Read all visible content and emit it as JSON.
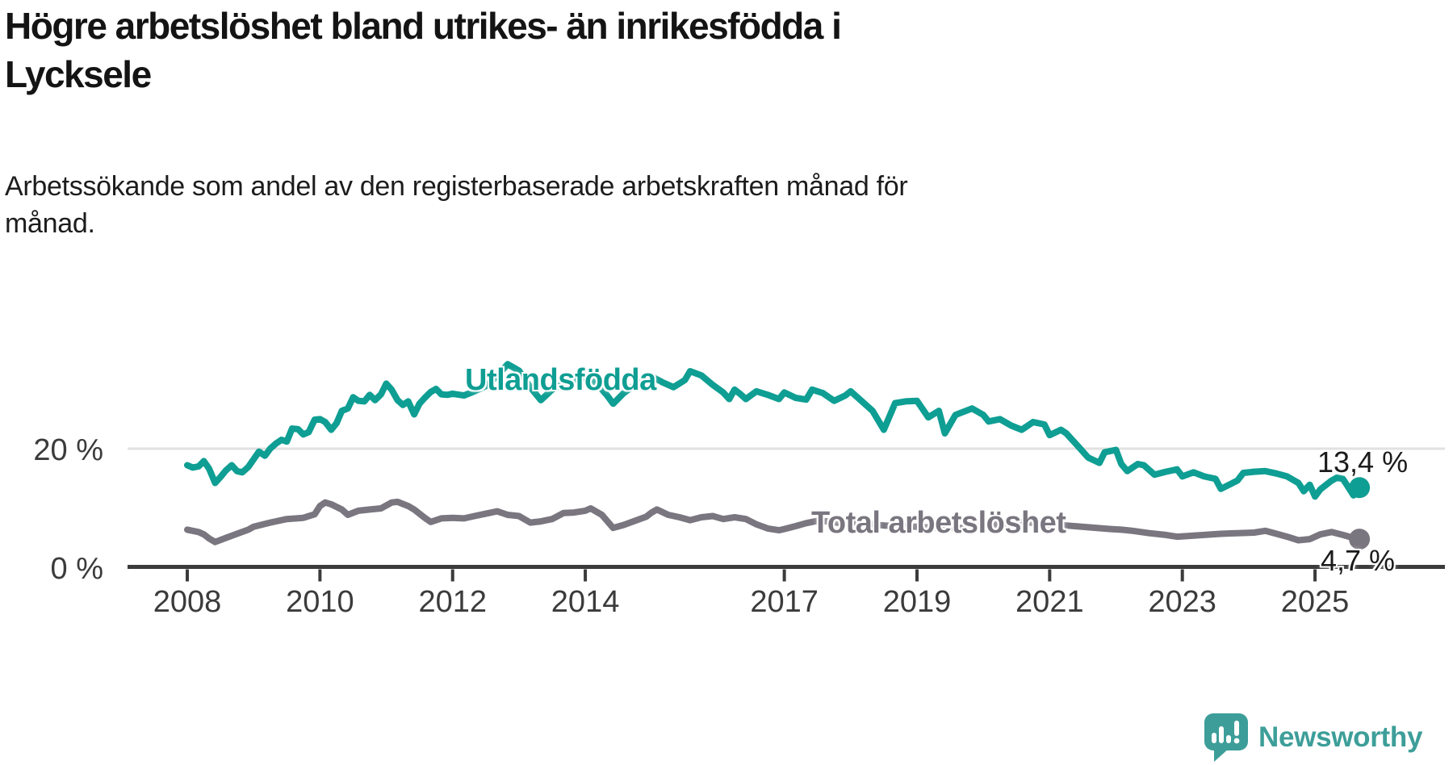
{
  "header": {
    "title_lines": [
      "Högre arbetslöshet bland utrikes- än inrikesfödda i",
      "Lycksele"
    ],
    "subtitle_lines": [
      "Arbetssökande som andel av den registerbaserade arbetskraften månad för",
      "månad."
    ]
  },
  "footer": {
    "brand": "Newsworthy"
  },
  "colors": {
    "foreign_born_line": "#0f9e93",
    "total_line": "#7a7680",
    "axis": "#3b3b3b",
    "gridline": "#e1e1e1",
    "text": "#141414",
    "brand_teal": "#3d9e99"
  },
  "chart_data": {
    "type": "line",
    "title": "Högre arbetslöshet bland utrikes- än inrikesfödda i Lycksele",
    "subtitle": "Arbetssökande som andel av den registerbaserade arbetskraften månad för månad.",
    "unit": "%",
    "x_axis": {
      "ticks": [
        2008,
        2010,
        2012,
        2014,
        2017,
        2019,
        2021,
        2023,
        2025
      ],
      "range": [
        2007.1,
        2026.9
      ]
    },
    "y_axis": {
      "ticks": [
        {
          "value": 0,
          "label": "0 %"
        },
        {
          "value": 20,
          "label": "20 %"
        }
      ],
      "range": [
        0,
        40
      ]
    },
    "grid": "horizontal-only",
    "legend_position": "inline-labels",
    "series": [
      {
        "name": "Utlandsfödda",
        "color": "#0f9e93",
        "end_label": "13,4 %",
        "end_value": 13.4,
        "points": [
          [
            2008.0,
            17.2
          ],
          [
            2008.08,
            16.8
          ],
          [
            2008.17,
            17.0
          ],
          [
            2008.25,
            17.9
          ],
          [
            2008.33,
            16.6
          ],
          [
            2008.42,
            14.2
          ],
          [
            2008.5,
            15.2
          ],
          [
            2008.58,
            16.3
          ],
          [
            2008.67,
            17.2
          ],
          [
            2008.75,
            16.2
          ],
          [
            2008.83,
            16.0
          ],
          [
            2008.92,
            16.9
          ],
          [
            2009.0,
            18.2
          ],
          [
            2009.08,
            19.5
          ],
          [
            2009.17,
            18.8
          ],
          [
            2009.25,
            20.0
          ],
          [
            2009.33,
            20.8
          ],
          [
            2009.42,
            21.5
          ],
          [
            2009.5,
            21.2
          ],
          [
            2009.58,
            23.4
          ],
          [
            2009.67,
            23.3
          ],
          [
            2009.75,
            22.4
          ],
          [
            2009.83,
            22.8
          ],
          [
            2009.92,
            24.9
          ],
          [
            2010.0,
            25.0
          ],
          [
            2010.08,
            24.5
          ],
          [
            2010.17,
            23.2
          ],
          [
            2010.25,
            24.3
          ],
          [
            2010.33,
            26.4
          ],
          [
            2010.42,
            26.8
          ],
          [
            2010.5,
            28.7
          ],
          [
            2010.58,
            28.1
          ],
          [
            2010.67,
            28.0
          ],
          [
            2010.75,
            29.1
          ],
          [
            2010.83,
            28.2
          ],
          [
            2010.92,
            29.2
          ],
          [
            2011.0,
            31.0
          ],
          [
            2011.08,
            30.0
          ],
          [
            2011.17,
            28.2
          ],
          [
            2011.25,
            27.4
          ],
          [
            2011.33,
            28.0
          ],
          [
            2011.42,
            25.8
          ],
          [
            2011.5,
            27.6
          ],
          [
            2011.58,
            28.6
          ],
          [
            2011.67,
            29.6
          ],
          [
            2011.75,
            30.1
          ],
          [
            2011.83,
            29.2
          ],
          [
            2011.92,
            29.1
          ],
          [
            2012.0,
            29.3
          ],
          [
            2012.17,
            29.0
          ],
          [
            2012.33,
            29.7
          ],
          [
            2012.5,
            30.6
          ],
          [
            2012.67,
            32.3
          ],
          [
            2012.83,
            34.3
          ],
          [
            2013.0,
            33.2
          ],
          [
            2013.17,
            30.4
          ],
          [
            2013.33,
            28.2
          ],
          [
            2013.5,
            30.0
          ],
          [
            2013.67,
            31.0
          ],
          [
            2013.83,
            31.6
          ],
          [
            2014.0,
            32.1
          ],
          [
            2014.17,
            31.0
          ],
          [
            2014.33,
            29.0
          ],
          [
            2014.42,
            27.6
          ],
          [
            2014.58,
            29.4
          ],
          [
            2014.75,
            30.8
          ],
          [
            2014.92,
            31.6
          ],
          [
            2015.0,
            32.2
          ],
          [
            2015.17,
            31.2
          ],
          [
            2015.33,
            30.4
          ],
          [
            2015.5,
            31.6
          ],
          [
            2015.58,
            33.1
          ],
          [
            2015.75,
            32.4
          ],
          [
            2015.92,
            30.8
          ],
          [
            2016.08,
            29.5
          ],
          [
            2016.17,
            28.4
          ],
          [
            2016.25,
            30.0
          ],
          [
            2016.33,
            29.3
          ],
          [
            2016.42,
            28.4
          ],
          [
            2016.58,
            29.7
          ],
          [
            2016.75,
            29.1
          ],
          [
            2016.92,
            28.4
          ],
          [
            2017.0,
            29.5
          ],
          [
            2017.17,
            28.6
          ],
          [
            2017.33,
            28.3
          ],
          [
            2017.42,
            30.0
          ],
          [
            2017.58,
            29.4
          ],
          [
            2017.75,
            28.1
          ],
          [
            2017.92,
            29.0
          ],
          [
            2018.0,
            29.7
          ],
          [
            2018.17,
            28.0
          ],
          [
            2018.33,
            26.4
          ],
          [
            2018.5,
            23.2
          ],
          [
            2018.67,
            27.7
          ],
          [
            2018.83,
            28.0
          ],
          [
            2019.0,
            28.1
          ],
          [
            2019.17,
            25.3
          ],
          [
            2019.33,
            26.4
          ],
          [
            2019.42,
            22.6
          ],
          [
            2019.58,
            25.7
          ],
          [
            2019.83,
            26.8
          ],
          [
            2020.0,
            25.7
          ],
          [
            2020.08,
            24.6
          ],
          [
            2020.25,
            25.0
          ],
          [
            2020.42,
            23.9
          ],
          [
            2020.58,
            23.2
          ],
          [
            2020.75,
            24.5
          ],
          [
            2020.92,
            24.1
          ],
          [
            2021.0,
            22.3
          ],
          [
            2021.17,
            23.2
          ],
          [
            2021.25,
            22.6
          ],
          [
            2021.42,
            20.5
          ],
          [
            2021.58,
            18.5
          ],
          [
            2021.75,
            17.6
          ],
          [
            2021.83,
            19.4
          ],
          [
            2022.0,
            19.8
          ],
          [
            2022.08,
            17.4
          ],
          [
            2022.17,
            16.2
          ],
          [
            2022.33,
            17.4
          ],
          [
            2022.42,
            17.2
          ],
          [
            2022.58,
            15.6
          ],
          [
            2022.75,
            16.1
          ],
          [
            2022.92,
            16.5
          ],
          [
            2023.0,
            15.3
          ],
          [
            2023.17,
            16.0
          ],
          [
            2023.33,
            15.3
          ],
          [
            2023.5,
            14.9
          ],
          [
            2023.58,
            13.2
          ],
          [
            2023.83,
            14.6
          ],
          [
            2023.92,
            15.9
          ],
          [
            2024.08,
            16.1
          ],
          [
            2024.25,
            16.2
          ],
          [
            2024.42,
            15.8
          ],
          [
            2024.58,
            15.3
          ],
          [
            2024.75,
            14.2
          ],
          [
            2024.83,
            12.8
          ],
          [
            2024.92,
            13.9
          ],
          [
            2025.0,
            11.9
          ],
          [
            2025.08,
            13.1
          ],
          [
            2025.17,
            13.9
          ],
          [
            2025.25,
            14.6
          ],
          [
            2025.33,
            15.1
          ],
          [
            2025.42,
            14.9
          ],
          [
            2025.5,
            13.5
          ],
          [
            2025.58,
            12.1
          ],
          [
            2025.67,
            13.4
          ]
        ]
      },
      {
        "name": "Total arbetslöshet",
        "color": "#7a7680",
        "end_label": "4,7 %",
        "end_value": 4.7,
        "points": [
          [
            2008.0,
            6.3
          ],
          [
            2008.17,
            5.9
          ],
          [
            2008.25,
            5.5
          ],
          [
            2008.33,
            4.8
          ],
          [
            2008.42,
            4.2
          ],
          [
            2008.58,
            4.9
          ],
          [
            2008.75,
            5.6
          ],
          [
            2008.92,
            6.3
          ],
          [
            2009.0,
            6.8
          ],
          [
            2009.25,
            7.5
          ],
          [
            2009.5,
            8.1
          ],
          [
            2009.75,
            8.3
          ],
          [
            2009.92,
            8.9
          ],
          [
            2010.0,
            10.3
          ],
          [
            2010.08,
            10.9
          ],
          [
            2010.17,
            10.6
          ],
          [
            2010.33,
            9.7
          ],
          [
            2010.42,
            8.8
          ],
          [
            2010.58,
            9.5
          ],
          [
            2010.75,
            9.7
          ],
          [
            2010.92,
            9.9
          ],
          [
            2011.08,
            10.9
          ],
          [
            2011.17,
            11.0
          ],
          [
            2011.33,
            10.3
          ],
          [
            2011.42,
            9.7
          ],
          [
            2011.58,
            8.3
          ],
          [
            2011.67,
            7.6
          ],
          [
            2011.83,
            8.2
          ],
          [
            2012.0,
            8.3
          ],
          [
            2012.17,
            8.2
          ],
          [
            2012.33,
            8.6
          ],
          [
            2012.5,
            9.0
          ],
          [
            2012.67,
            9.4
          ],
          [
            2012.83,
            8.8
          ],
          [
            2013.0,
            8.6
          ],
          [
            2013.17,
            7.5
          ],
          [
            2013.33,
            7.7
          ],
          [
            2013.5,
            8.1
          ],
          [
            2013.67,
            9.1
          ],
          [
            2013.83,
            9.2
          ],
          [
            2014.0,
            9.5
          ],
          [
            2014.08,
            9.9
          ],
          [
            2014.25,
            8.8
          ],
          [
            2014.42,
            6.6
          ],
          [
            2014.58,
            7.1
          ],
          [
            2014.75,
            7.8
          ],
          [
            2014.92,
            8.5
          ],
          [
            2015.0,
            9.2
          ],
          [
            2015.08,
            9.7
          ],
          [
            2015.25,
            8.8
          ],
          [
            2015.42,
            8.4
          ],
          [
            2015.58,
            7.9
          ],
          [
            2015.75,
            8.4
          ],
          [
            2015.92,
            8.6
          ],
          [
            2016.08,
            8.1
          ],
          [
            2016.25,
            8.4
          ],
          [
            2016.42,
            8.1
          ],
          [
            2016.58,
            7.2
          ],
          [
            2016.75,
            6.5
          ],
          [
            2016.92,
            6.2
          ],
          [
            2017.0,
            6.4
          ],
          [
            2017.17,
            6.9
          ],
          [
            2017.33,
            7.4
          ],
          [
            2017.5,
            7.8
          ],
          [
            2017.67,
            7.7
          ],
          [
            2017.83,
            7.4
          ],
          [
            2018.0,
            7.6
          ],
          [
            2018.25,
            7.3
          ],
          [
            2018.5,
            7.0
          ],
          [
            2018.75,
            6.9
          ],
          [
            2019.0,
            6.8
          ],
          [
            2019.33,
            6.6
          ],
          [
            2019.67,
            6.6
          ],
          [
            2020.0,
            6.9
          ],
          [
            2020.33,
            7.4
          ],
          [
            2020.58,
            7.6
          ],
          [
            2020.92,
            7.3
          ],
          [
            2021.25,
            7.0
          ],
          [
            2021.58,
            6.7
          ],
          [
            2021.92,
            6.4
          ],
          [
            2022.08,
            6.3
          ],
          [
            2022.25,
            6.1
          ],
          [
            2022.5,
            5.7
          ],
          [
            2022.75,
            5.4
          ],
          [
            2022.92,
            5.1
          ],
          [
            2023.17,
            5.3
          ],
          [
            2023.33,
            5.4
          ],
          [
            2023.58,
            5.6
          ],
          [
            2023.83,
            5.7
          ],
          [
            2024.08,
            5.8
          ],
          [
            2024.25,
            6.1
          ],
          [
            2024.42,
            5.6
          ],
          [
            2024.58,
            5.1
          ],
          [
            2024.75,
            4.5
          ],
          [
            2024.92,
            4.7
          ],
          [
            2025.08,
            5.5
          ],
          [
            2025.25,
            5.9
          ],
          [
            2025.42,
            5.4
          ],
          [
            2025.58,
            4.9
          ],
          [
            2025.67,
            4.7
          ]
        ]
      }
    ]
  }
}
